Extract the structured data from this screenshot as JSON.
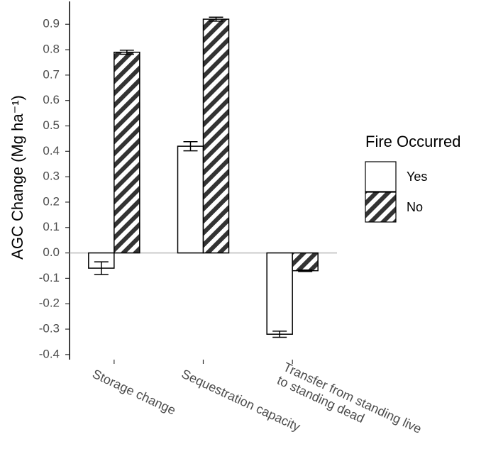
{
  "chart_data": {
    "type": "bar",
    "ylabel": "AGC Change (Mg ha⁻¹)",
    "categories": [
      "Storage change",
      "Sequestration capacity",
      "Transfer from standing live\nto standing dead"
    ],
    "legend_title": "Fire Occurred",
    "legend_position": "right",
    "series": [
      {
        "name": "Yes",
        "color": "#ffffff",
        "pattern": "none",
        "values": [
          -0.06,
          0.42,
          -0.32
        ],
        "errors": [
          0.025,
          0.018,
          0.012
        ]
      },
      {
        "name": "No",
        "color": "#333333",
        "pattern": "hatch",
        "values": [
          0.79,
          0.92,
          -0.07
        ],
        "errors": [
          0.008,
          0.008,
          0.003
        ]
      }
    ],
    "ylim": [
      -0.42,
      0.99
    ],
    "yticks": [
      -0.4,
      -0.3,
      -0.2,
      -0.1,
      {
        "value": 0,
        "label": "0.0"
      },
      0.1,
      0.2,
      0.3,
      0.4,
      0.5,
      0.6,
      0.7,
      0.8,
      0.9
    ],
    "zero_line": true
  }
}
